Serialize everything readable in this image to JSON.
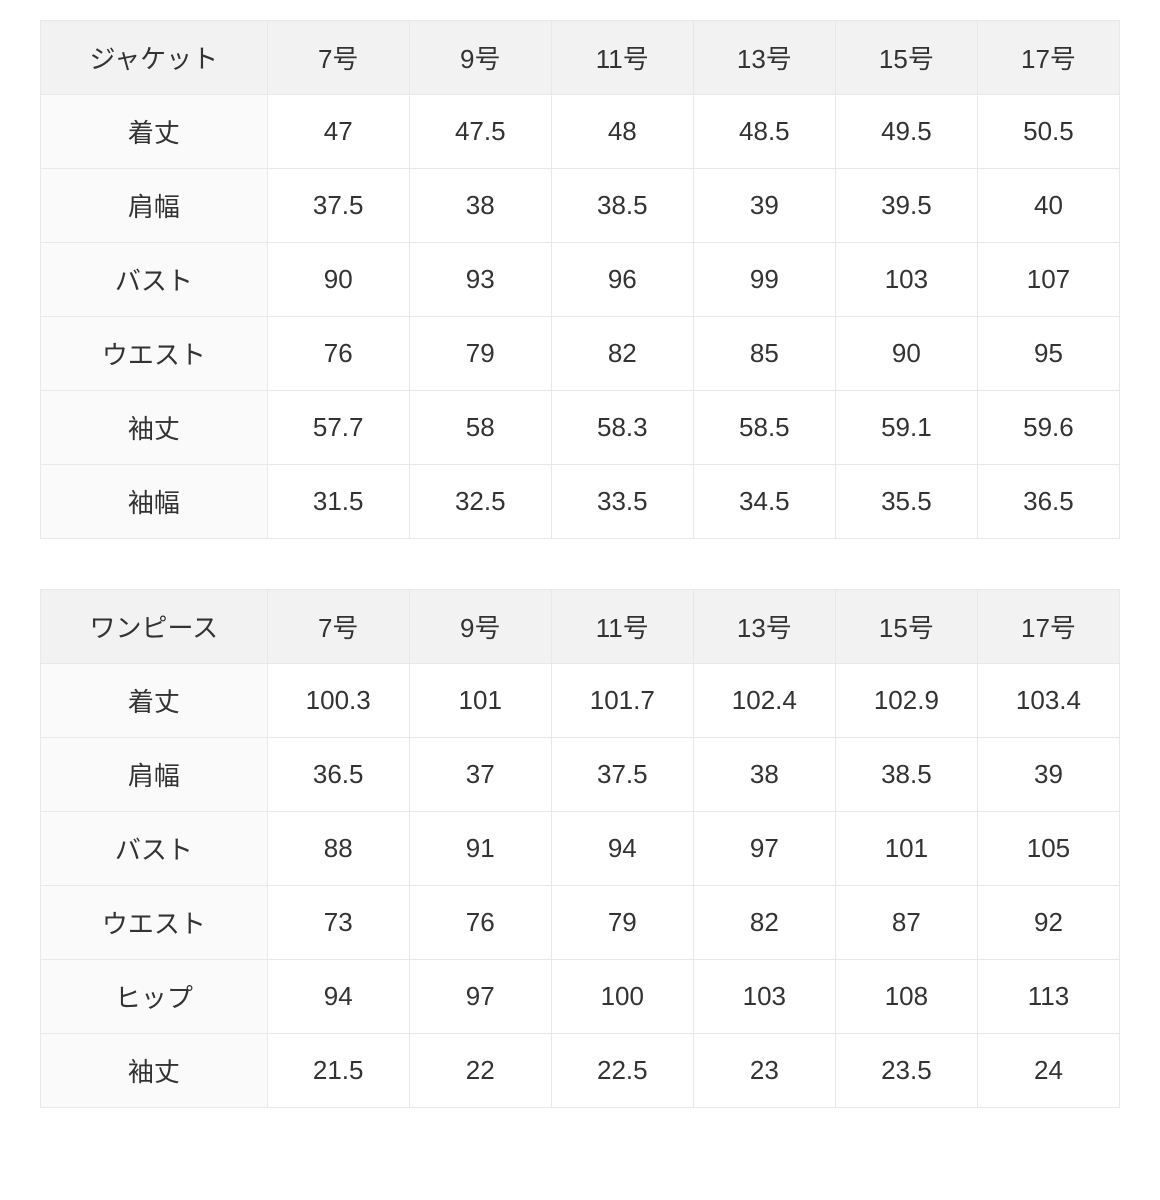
{
  "tables": [
    {
      "type": "table",
      "header_bg": "#f2f2f2",
      "row_label_bg": "#fafafa",
      "cell_bg": "#ffffff",
      "border_color": "#e8e8e8",
      "text_color": "#333333",
      "font_size": 26,
      "columns": [
        "ジャケット",
        "7号",
        "9号",
        "11号",
        "13号",
        "15号",
        "17号"
      ],
      "rows": [
        [
          "着丈",
          "47",
          "47.5",
          "48",
          "48.5",
          "49.5",
          "50.5"
        ],
        [
          "肩幅",
          "37.5",
          "38",
          "38.5",
          "39",
          "39.5",
          "40"
        ],
        [
          "バスト",
          "90",
          "93",
          "96",
          "99",
          "103",
          "107"
        ],
        [
          "ウエスト",
          "76",
          "79",
          "82",
          "85",
          "90",
          "95"
        ],
        [
          "袖丈",
          "57.7",
          "58",
          "58.3",
          "58.5",
          "59.1",
          "59.6"
        ],
        [
          "袖幅",
          "31.5",
          "32.5",
          "33.5",
          "34.5",
          "35.5",
          "36.5"
        ]
      ]
    },
    {
      "type": "table",
      "header_bg": "#f2f2f2",
      "row_label_bg": "#fafafa",
      "cell_bg": "#ffffff",
      "border_color": "#e8e8e8",
      "text_color": "#333333",
      "font_size": 26,
      "columns": [
        "ワンピース",
        "7号",
        "9号",
        "11号",
        "13号",
        "15号",
        "17号"
      ],
      "rows": [
        [
          "着丈",
          "100.3",
          "101",
          "101.7",
          "102.4",
          "102.9",
          "103.4"
        ],
        [
          "肩幅",
          "36.5",
          "37",
          "37.5",
          "38",
          "38.5",
          "39"
        ],
        [
          "バスト",
          "88",
          "91",
          "94",
          "97",
          "101",
          "105"
        ],
        [
          "ウエスト",
          "73",
          "76",
          "79",
          "82",
          "87",
          "92"
        ],
        [
          "ヒップ",
          "94",
          "97",
          "100",
          "103",
          "108",
          "113"
        ],
        [
          "袖丈",
          "21.5",
          "22",
          "22.5",
          "23",
          "23.5",
          "24"
        ]
      ]
    }
  ]
}
